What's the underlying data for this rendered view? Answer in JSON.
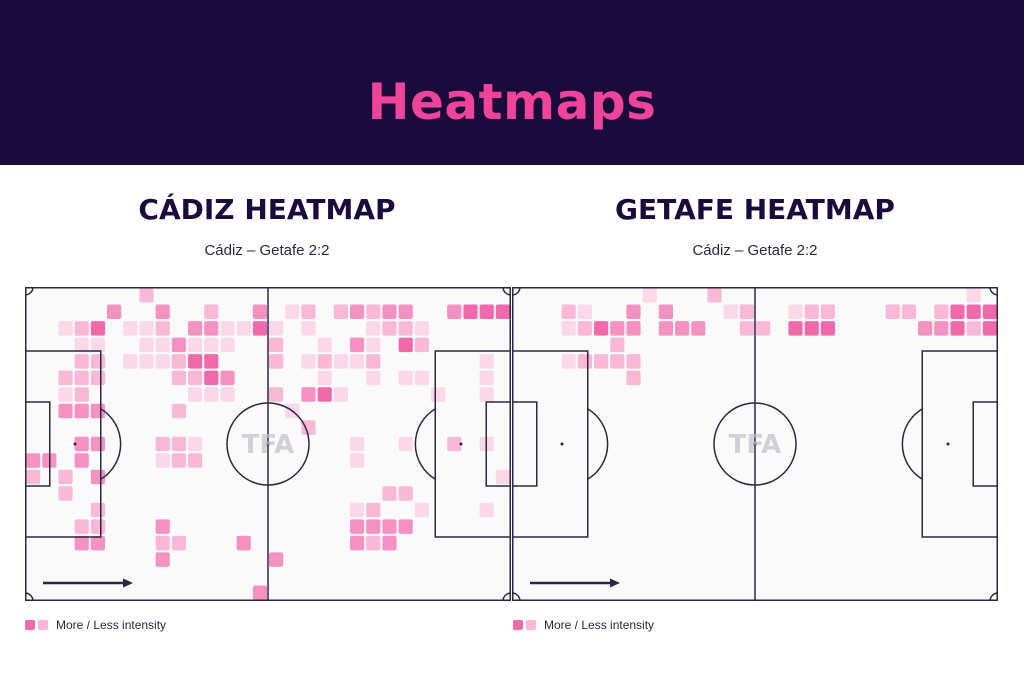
{
  "header": {
    "title": "Heatmaps"
  },
  "colors": {
    "background_dark": "#1b0a3c",
    "title_pink": "#f0449a",
    "pitch_line": "#2c2548",
    "pitch_fill": "#fafafa",
    "intensity": [
      "#f06aab",
      "#f592c2",
      "#f8b8d6",
      "#fbd8e8"
    ]
  },
  "watermark": "TFA",
  "panels": [
    {
      "title": "CÁDIZ HEATMAP",
      "subtitle": "Cádiz – Getafe 2:2"
    },
    {
      "title": "GETAFE HEATMAP",
      "subtitle": "Cádiz – Getafe 2:2"
    }
  ],
  "legend": {
    "text": "More / Less intensity"
  },
  "chart_data": [
    {
      "type": "heatmap",
      "title": "CÁDIZ HEATMAP",
      "subtitle": "Cádiz – Getafe 2:2",
      "attack_direction": "left-to-right",
      "grid": {
        "cols": 30,
        "rows": 19
      },
      "intensity_scale": "0 = none, 1 = less, 4 = more",
      "values": [
        "000000020000000000000000000000",
        "000003003002003012023233003444",
        "001240112033114101000122100000",
        "000110011311100200103104200000",
        "000220111244000201211200000010",
        "002220000224300000100101100010",
        "001200000011100203410000010010",
        "003330000200000010000000000000",
        "000000000000000002000000000000",
        "000330002210000000001001002010",
        "330300001220000000001000000000",
        "202030000000000000000000000001",
        "002000000000000000000022000000",
        "000020000000000000001200100010",
        "000220003000000000003333000000",
        "000330002200030000003230000000",
        "000000003000000300000000000000",
        "000000000000000000000000000000",
        "000000000000003000000000000000"
      ]
    },
    {
      "type": "heatmap",
      "title": "GETAFE HEATMAP",
      "subtitle": "Cádiz – Getafe 2:2",
      "attack_direction": "left-to-right",
      "grid": {
        "cols": 30,
        "rows": 19
      },
      "intensity_scale": "0 = none, 1 = less, 4 = more",
      "values": [
        "000000001000200000000000000010",
        "000210030300012001220002202444",
        "000124330333002204440000033424",
        "000000200000000000000000000000",
        "000122220000000000000000000000",
        "000000020000000000000000000000",
        "000000000000000000000000000000",
        "000000000000000000000000000000",
        "000000000000000000000000000000",
        "000000000000000000000000000000",
        "000000000000000000000000000000",
        "000000000000000000000000000000",
        "000000000000000000000000000000",
        "000000000000000000000000000000",
        "000000000000000000000000000000",
        "000000000000000000000000000000",
        "000000000000000000000000000000",
        "000000000000000000000000000000",
        "000000000000000000000000000000"
      ]
    }
  ]
}
